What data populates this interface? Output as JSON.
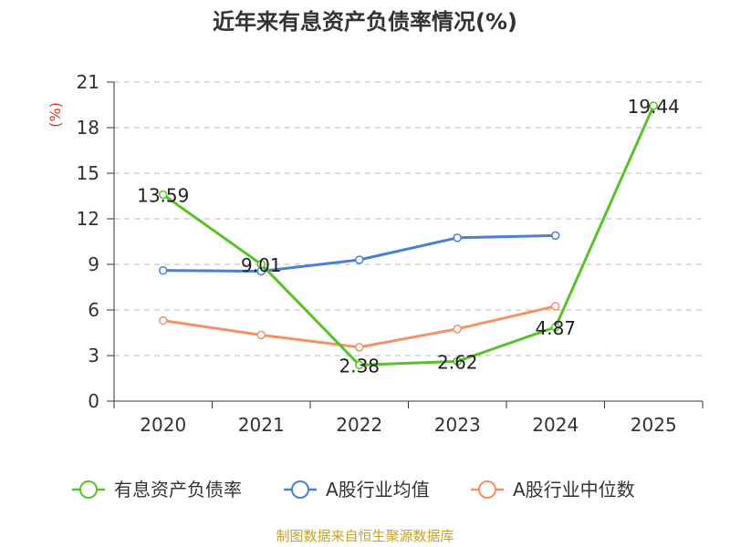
{
  "chart_data": {
    "type": "line",
    "title": "近年来有息资产负债率情况(%)",
    "ylabel": "(%)",
    "xlabel": "",
    "categories": [
      "2020",
      "2021",
      "2022",
      "2023",
      "2024",
      "2025"
    ],
    "ylim": [
      0,
      21
    ],
    "yticks": [
      0,
      3,
      6,
      9,
      12,
      15,
      18,
      21
    ],
    "grid": "horizontal-dashed",
    "legend_position": "bottom",
    "series": [
      {
        "name": "有息资产负债率",
        "color": "#58c22d",
        "values": [
          13.59,
          9.01,
          2.38,
          2.62,
          4.87,
          19.44
        ],
        "labels": [
          "13.59",
          "9.01",
          "2.38",
          "2.62",
          "4.87",
          "19.44"
        ]
      },
      {
        "name": "A股行业均值",
        "color": "#4a7fd4",
        "values": [
          8.6,
          8.55,
          9.3,
          10.75,
          10.9,
          null
        ]
      },
      {
        "name": "A股行业中位数",
        "color": "#f4906a",
        "values": [
          5.3,
          4.35,
          3.55,
          4.75,
          6.25,
          null
        ]
      }
    ]
  },
  "source": "制图数据来自恒生聚源数据库"
}
